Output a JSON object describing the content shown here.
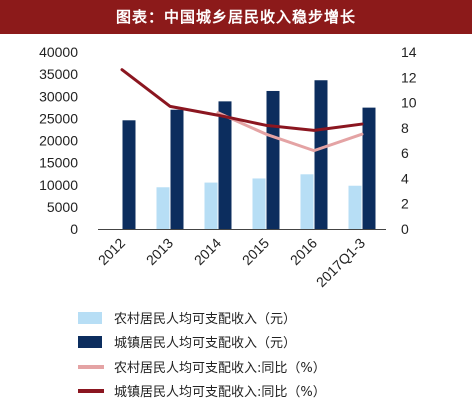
{
  "header": {
    "title": "图表：中国城乡居民收入稳步增长"
  },
  "colors": {
    "header_bg": "#8c1a1a",
    "rural_bar": "#b7def5",
    "urban_bar": "#0c2d5e",
    "rural_line": "#e4a3a4",
    "urban_line": "#8b1620"
  },
  "chart_data": {
    "type": "bar",
    "categories": [
      "2012",
      "2013",
      "2014",
      "2015",
      "2016",
      "2017Q1-3"
    ],
    "series": [
      {
        "name": "农村居民人均可支配收入（元）",
        "type": "bar",
        "axis": "left",
        "values": [
          null,
          9430,
          10489,
          11422,
          12363,
          9778
        ]
      },
      {
        "name": "城镇居民人均可支配收入（元）",
        "type": "bar",
        "axis": "left",
        "values": [
          24565,
          26955,
          28844,
          31195,
          33616,
          27430
        ]
      },
      {
        "name": "农村居民人均可支配收入:同比（%）",
        "type": "line",
        "axis": "right",
        "values": [
          null,
          null,
          9.2,
          7.5,
          6.2,
          7.5
        ]
      },
      {
        "name": "城镇居民人均可支配收入:同比（%）",
        "type": "line",
        "axis": "right",
        "values": [
          12.6,
          9.7,
          9.0,
          8.2,
          7.8,
          8.3
        ]
      }
    ],
    "y_left": {
      "min": 0,
      "max": 40000,
      "ticks": [
        "0",
        "5000",
        "10000",
        "15000",
        "20000",
        "25000",
        "30000",
        "35000",
        "40000"
      ]
    },
    "y_right": {
      "min": 0,
      "max": 14,
      "ticks": [
        "0",
        "2",
        "4",
        "6",
        "8",
        "10",
        "12",
        "14"
      ]
    },
    "grid": false,
    "legend_position": "bottom"
  }
}
